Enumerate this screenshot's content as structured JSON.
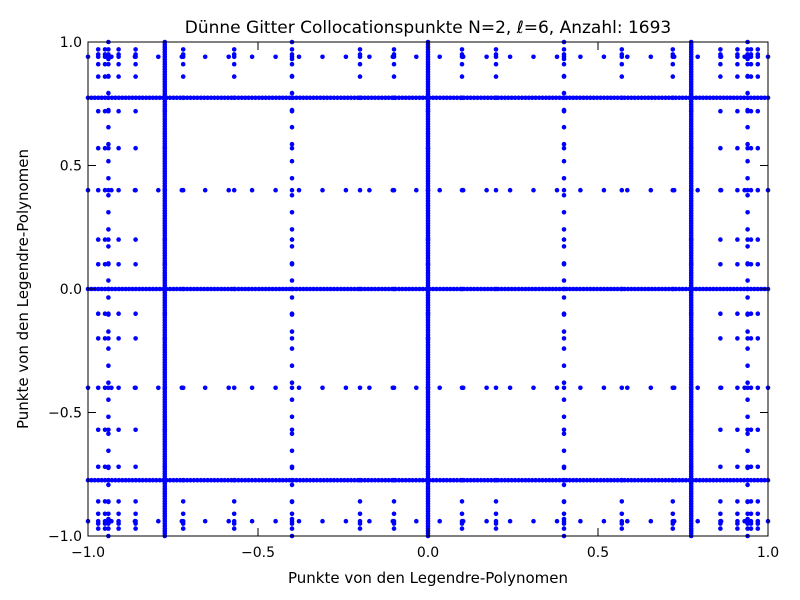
{
  "chart_data": {
    "type": "scatter",
    "title": "Dünne Gitter Collocationspunkte N=2, ℓ=6, Anzahl: 1693",
    "xlabel": "Punkte von den Legendre-Polynomen",
    "ylabel": "Punkte von den Legendre-Polynomen",
    "xlim": [
      -1.0,
      1.0
    ],
    "ylim": [
      -1.0,
      1.0
    ],
    "x_ticks": [
      -1.0,
      -0.5,
      0.0,
      0.5,
      1.0
    ],
    "y_ticks": [
      -1.0,
      -0.5,
      0.0,
      0.5,
      1.0
    ],
    "x_tick_labels": [
      "−1.0",
      "−0.5",
      "0.0",
      "0.5",
      "1.0"
    ],
    "y_tick_labels": [
      "−1.0",
      "−0.5",
      "0.0",
      "0.5",
      "1.0"
    ],
    "grid": false,
    "marker_color": "#0000ff",
    "lines_dense": [
      -0.774,
      0.0,
      0.774
    ],
    "lines_mid": [
      -0.4,
      0.4,
      -0.94,
      0.94
    ],
    "lines_sparse": [
      -0.97,
      -0.95,
      -0.91,
      -0.86,
      -0.72,
      -0.57,
      -0.2,
      0.2,
      0.57,
      0.72,
      0.86,
      0.91,
      0.95,
      0.97,
      -0.1,
      0.1
    ],
    "dense_points_per_line": 200,
    "mid_points_per_line": 30
  }
}
